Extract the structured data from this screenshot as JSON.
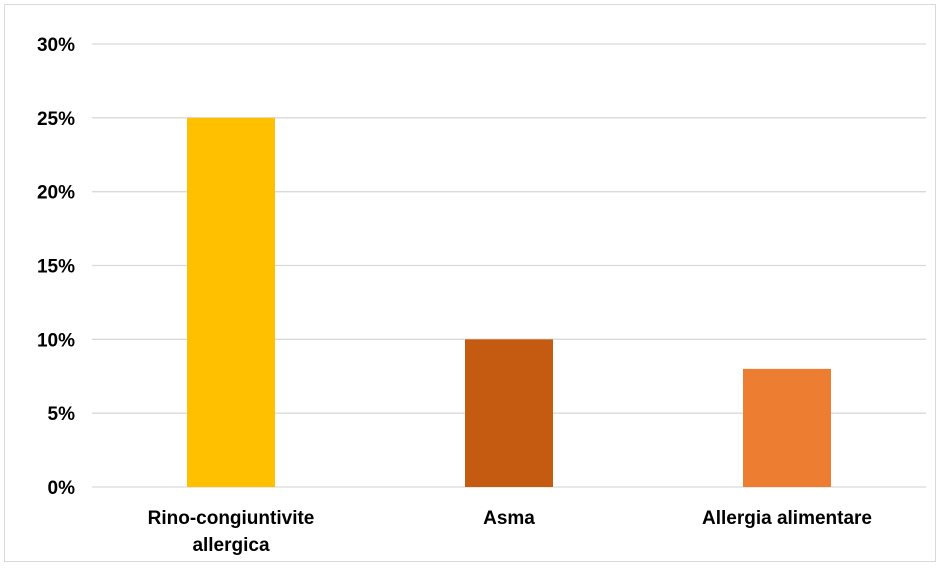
{
  "chart_data": {
    "type": "bar",
    "categories": [
      [
        "Rino-congiuntivite",
        "allergica"
      ],
      [
        "Asma"
      ],
      [
        "Allergia alimentare"
      ]
    ],
    "values": [
      25,
      10,
      8
    ],
    "colors": [
      "#FFC000",
      "#C55A11",
      "#ED7D31"
    ],
    "y_ticks": [
      "0%",
      "5%",
      "10%",
      "15%",
      "20%",
      "25%",
      "30%"
    ],
    "ylim": [
      0,
      30
    ],
    "grid": true,
    "legend": "none"
  }
}
